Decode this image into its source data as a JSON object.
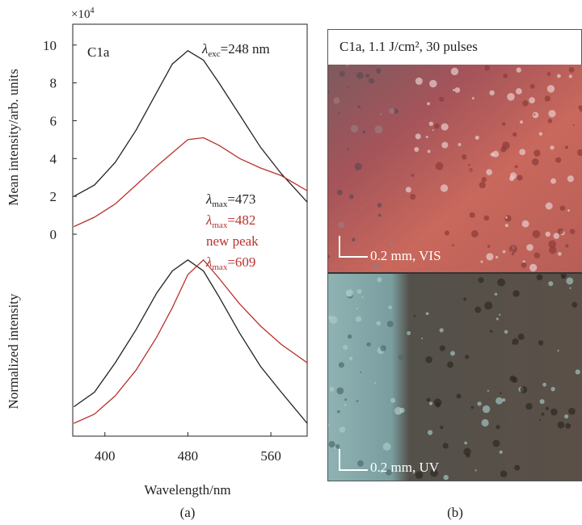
{
  "chart_data": [
    {
      "type": "line",
      "multiplier": {
        "base": "×10",
        "exponent": "4"
      },
      "ylabel": "Mean intensity/arb. units",
      "x": [
        370,
        390,
        410,
        430,
        450,
        465,
        480,
        495,
        510,
        530,
        550,
        570,
        595
      ],
      "series": [
        {
          "color": "#222222",
          "values": [
            2.0,
            2.6,
            3.8,
            5.5,
            7.5,
            9.0,
            9.7,
            9.2,
            8.0,
            6.3,
            4.6,
            3.2,
            1.7
          ]
        },
        {
          "color": "#b8322e",
          "values": [
            0.4,
            0.9,
            1.6,
            2.6,
            3.6,
            4.3,
            5.0,
            5.1,
            4.7,
            4.0,
            3.5,
            3.1,
            2.3
          ]
        }
      ],
      "xlim": [
        369,
        595
      ],
      "ylim": [
        0,
        11.1
      ],
      "yticks": [
        0,
        2,
        4,
        6,
        8,
        10
      ],
      "label": "C1a",
      "excitation": {
        "symbol": "λ",
        "subscript": "exc",
        "text": "=248 nm"
      },
      "peaks": [
        {
          "symbol": "λ",
          "subscript": "max",
          "text": "=473",
          "color": "#222222"
        },
        {
          "symbol": "λ",
          "subscript": "max",
          "text": "=482",
          "color": "#b8322e"
        },
        {
          "text": "new peak",
          "color": "#b8322e"
        },
        {
          "symbol": "λ",
          "subscript": "max",
          "text": "=609",
          "color": "#b8322e"
        }
      ]
    },
    {
      "type": "line",
      "ylabel": "Normalized intensity",
      "xlabel": "Wavelength/nm",
      "x": [
        370,
        390,
        410,
        430,
        450,
        465,
        480,
        495,
        510,
        530,
        550,
        570,
        595
      ],
      "series": [
        {
          "color": "#222222",
          "values": [
            0.16,
            0.24,
            0.4,
            0.58,
            0.78,
            0.9,
            0.96,
            0.9,
            0.76,
            0.56,
            0.38,
            0.24,
            0.07
          ]
        },
        {
          "color": "#b8322e",
          "values": [
            0.07,
            0.12,
            0.22,
            0.36,
            0.54,
            0.7,
            0.88,
            0.96,
            0.86,
            0.72,
            0.6,
            0.5,
            0.4
          ]
        }
      ],
      "xlim": [
        369,
        595
      ],
      "ylim": [
        0,
        1.1
      ],
      "xticks": [
        400,
        480,
        560
      ]
    }
  ],
  "panel_b": {
    "header": "C1a, 1.1 J/cm², 30 pulses",
    "top_scale": "0.2 mm, VIS",
    "bottom_scale": "0.2 mm, UV"
  },
  "panel_labels": [
    "(a)",
    "(b)"
  ]
}
